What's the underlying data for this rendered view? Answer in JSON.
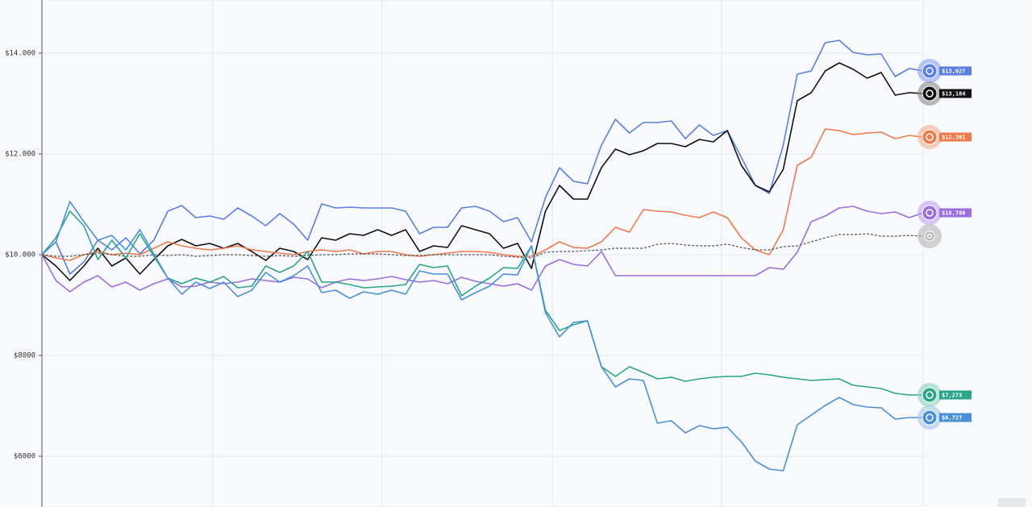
{
  "chart_data": {
    "type": "line",
    "x": [
      0,
      1,
      2,
      3,
      4,
      5,
      6,
      7,
      8,
      9,
      10,
      11,
      12,
      13,
      14,
      15,
      16,
      17,
      18,
      19,
      20,
      21,
      22,
      23,
      24,
      25,
      26,
      27,
      28,
      29,
      30,
      31,
      32,
      33,
      34,
      35,
      36,
      37,
      38,
      39,
      40,
      41,
      42,
      43,
      44,
      45,
      46,
      47,
      48,
      49,
      50,
      51,
      52,
      53,
      54,
      55,
      56,
      57,
      58,
      59,
      60,
      61,
      62,
      63
    ],
    "xlim": [
      0,
      63
    ],
    "xticks": [
      12.2,
      24.3,
      36.5,
      48.6
    ],
    "ylim": [
      5000,
      15000
    ],
    "yticks": [
      {
        "value": 6000,
        "label": "$6000"
      },
      {
        "value": 8000,
        "label": "$8000"
      },
      {
        "value": 10000,
        "label": "$10.000"
      },
      {
        "value": 12000,
        "label": "$12.000"
      },
      {
        "value": 14000,
        "label": "$14.000"
      }
    ],
    "grid": true,
    "series": [
      {
        "name": "$13,627",
        "color": "#5b7fe0",
        "badge": "#8aa2ee",
        "values": [
          10000,
          10256,
          9616,
          9856,
          10288,
          10096,
          10336,
          10016,
          10288,
          10864,
          10976,
          10736,
          10768,
          10704,
          10928,
          10768,
          10576,
          10816,
          10608,
          10288,
          11008,
          10928,
          10944,
          10928,
          10928,
          10928,
          10864,
          10416,
          10544,
          10544,
          10928,
          10960,
          10864,
          10656,
          10736,
          10256,
          11136,
          11728,
          11456,
          11408,
          12176,
          12688,
          12416,
          12624,
          12624,
          12656,
          12304,
          12576,
          12368,
          12464,
          11936,
          11376,
          11216,
          12176,
          13584,
          13648,
          14208,
          14256,
          14016,
          13968,
          13984,
          13536,
          13696,
          13648
        ]
      },
      {
        "name": "$13,184",
        "color": "#111111",
        "badge": "#8a8a8a",
        "values": [
          10000,
          9776,
          9488,
          9776,
          10128,
          9776,
          9936,
          9616,
          9904,
          10176,
          10304,
          10176,
          10224,
          10128,
          10224,
          10064,
          9888,
          10128,
          10064,
          9904,
          10336,
          10288,
          10416,
          10384,
          10496,
          10384,
          10496,
          10064,
          10176,
          10144,
          10576,
          10496,
          10416,
          10128,
          10224,
          9728,
          10864,
          11376,
          11104,
          11104,
          11728,
          12096,
          11984,
          12064,
          12208,
          12208,
          12144,
          12288,
          12240,
          12464,
          11776,
          11376,
          11248,
          11696,
          13056,
          13216,
          13648,
          13808,
          13680,
          13504,
          13616,
          13168,
          13216,
          13200
        ]
      },
      {
        "name": "$12,361",
        "color": "#f07a4c",
        "badge": "#f6ad90",
        "values": [
          10000,
          9936,
          9888,
          10000,
          10064,
          10000,
          10032,
          10000,
          10128,
          10256,
          10176,
          10128,
          10096,
          10128,
          10176,
          10096,
          10064,
          10032,
          10000,
          10064,
          10096,
          10064,
          10096,
          10016,
          10064,
          10064,
          10000,
          9968,
          10000,
          10032,
          10064,
          10064,
          10048,
          10000,
          9968,
          9968,
          10096,
          10256,
          10144,
          10128,
          10256,
          10544,
          10448,
          10896,
          10864,
          10848,
          10784,
          10736,
          10848,
          10736,
          10336,
          10096,
          10000,
          10496,
          11776,
          11936,
          12496,
          12464,
          12384,
          12416,
          12432,
          12304,
          12368,
          12336
        ]
      },
      {
        "name": "$10,780",
        "color": "#9b6ee0",
        "badge": "#bfa3ee",
        "values": [
          10000,
          9488,
          9264,
          9456,
          9584,
          9360,
          9456,
          9296,
          9424,
          9520,
          9360,
          9376,
          9456,
          9424,
          9456,
          9520,
          9488,
          9456,
          9552,
          9520,
          9344,
          9456,
          9520,
          9488,
          9520,
          9568,
          9504,
          9456,
          9488,
          9424,
          9552,
          9472,
          9424,
          9376,
          9424,
          9296,
          9776,
          9904,
          9808,
          9776,
          10064,
          9584,
          9584,
          9584,
          9584,
          9584,
          9584,
          9584,
          9584,
          9584,
          9584,
          9584,
          9744,
          9712,
          10048,
          10656,
          10768,
          10928,
          10960,
          10864,
          10816,
          10848,
          10736,
          10832
        ]
      },
      {
        "color": "#555555",
        "badge": "#b5b5b5",
        "dash": true,
        "values": [
          10000,
          9968,
          9968,
          10000,
          10032,
          10000,
          9968,
          9968,
          10000,
          9984,
          10000,
          9968,
          9984,
          10000,
          10000,
          9984,
          9968,
          9984,
          9968,
          9984,
          10000,
          10000,
          10016,
          10016,
          10016,
          10000,
          9984,
          9984,
          10000,
          10000,
          10000,
          10000,
          10000,
          9968,
          9952,
          9936,
          10048,
          10064,
          10064,
          10080,
          10096,
          10128,
          10128,
          10128,
          10208,
          10224,
          10192,
          10176,
          10176,
          10208,
          10144,
          10096,
          10096,
          10160,
          10176,
          10256,
          10336,
          10400,
          10400,
          10416,
          10368,
          10368,
          10384,
          10368
        ]
      },
      {
        "name": "$7,273",
        "color": "#2aa58a",
        "badge": "#8fd3c1",
        "values": [
          10000,
          10336,
          10864,
          10576,
          9904,
          10288,
          9936,
          10416,
          9968,
          9536,
          9424,
          9536,
          9456,
          9568,
          9344,
          9376,
          9776,
          9648,
          9776,
          10064,
          9456,
          9456,
          9408,
          9344,
          9360,
          9376,
          9408,
          9808,
          9744,
          9776,
          9184,
          9376,
          9536,
          9744,
          9728,
          10176,
          8896,
          8496,
          8608,
          8688,
          7776,
          7584,
          7776,
          7664,
          7536,
          7568,
          7488,
          7536,
          7568,
          7584,
          7584,
          7648,
          7616,
          7568,
          7536,
          7504,
          7520,
          7536,
          7408,
          7376,
          7344,
          7248,
          7216,
          7216
        ]
      },
      {
        "name": "$6,727",
        "color": "#4a90d9",
        "badge": "#a3c4ee",
        "values": [
          10000,
          10256,
          11056,
          10656,
          10288,
          10384,
          10096,
          10496,
          10016,
          9536,
          9216,
          9456,
          9328,
          9456,
          9168,
          9296,
          9648,
          9456,
          9584,
          9776,
          9248,
          9296,
          9136,
          9264,
          9216,
          9296,
          9216,
          9680,
          9616,
          9616,
          9104,
          9248,
          9376,
          9616,
          9600,
          10176,
          8848,
          8368,
          8656,
          8688,
          7776,
          7376,
          7536,
          7504,
          6656,
          6704,
          6464,
          6608,
          6544,
          6576,
          6288,
          5904,
          5744,
          5712,
          6624,
          6816,
          7008,
          7168,
          7024,
          6976,
          6960,
          6736,
          6768,
          6768
        ]
      }
    ]
  }
}
